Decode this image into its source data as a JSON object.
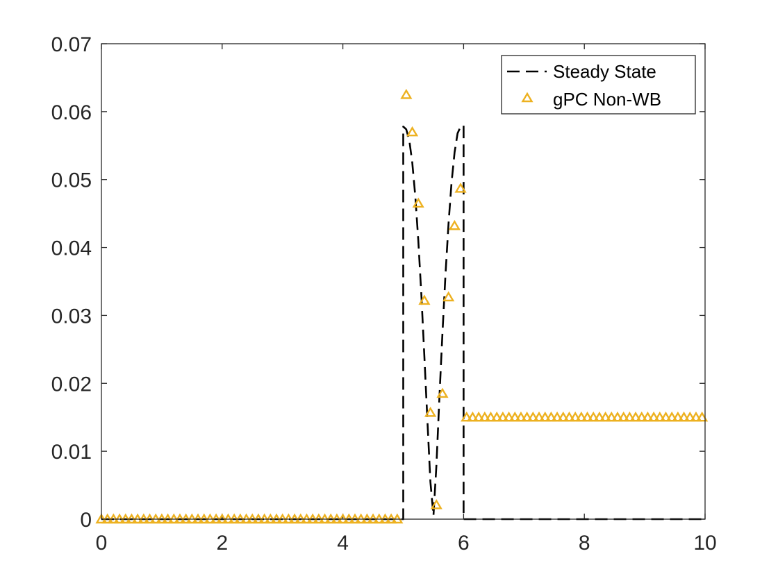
{
  "chart_data": {
    "type": "line",
    "title": "",
    "xlabel": "",
    "ylabel": "",
    "xlim": [
      0,
      10
    ],
    "ylim": [
      0,
      0.07
    ],
    "xticks": [
      0,
      2,
      4,
      6,
      8,
      10
    ],
    "xtick_labels": [
      "0",
      "2",
      "4",
      "6",
      "8",
      "10"
    ],
    "yticks": [
      0,
      0.01,
      0.02,
      0.03,
      0.04,
      0.05,
      0.06,
      0.07
    ],
    "ytick_labels": [
      "0",
      "0.01",
      "0.02",
      "0.03",
      "0.04",
      "0.05",
      "0.06",
      "0.07"
    ],
    "grid": false,
    "box": true,
    "legend_placement": "top-right",
    "series": [
      {
        "name": "Steady State",
        "style": "dashed-line",
        "color": "#000000",
        "x": [
          0,
          5,
          5,
          5.05,
          5.1,
          5.15,
          5.2,
          5.25,
          5.3,
          5.35,
          5.4,
          5.45,
          5.5,
          5.55,
          5.6,
          5.65,
          5.7,
          5.75,
          5.8,
          5.85,
          5.9,
          5.95,
          6,
          6,
          10
        ],
        "y": [
          0,
          0,
          0.0578,
          0.0574,
          0.0558,
          0.0525,
          0.0475,
          0.041,
          0.033,
          0.024,
          0.0145,
          0.0055,
          0.0005,
          0.008,
          0.018,
          0.0275,
          0.036,
          0.0435,
          0.0495,
          0.054,
          0.0568,
          0.0578,
          0.058,
          0,
          0
        ]
      },
      {
        "name": "gPC Non-WB",
        "style": "triangle-markers",
        "color": "#EDB120",
        "x": [
          0,
          0.1,
          0.2,
          0.3,
          0.4,
          0.5,
          0.6,
          0.7,
          0.8,
          0.9,
          1.0,
          1.1,
          1.2,
          1.3,
          1.4,
          1.5,
          1.6,
          1.7,
          1.8,
          1.9,
          2.0,
          2.1,
          2.2,
          2.3,
          2.4,
          2.5,
          2.6,
          2.7,
          2.8,
          2.9,
          3.0,
          3.1,
          3.2,
          3.3,
          3.4,
          3.5,
          3.6,
          3.7,
          3.8,
          3.9,
          4.0,
          4.1,
          4.2,
          4.3,
          4.4,
          4.5,
          4.6,
          4.7,
          4.8,
          4.9,
          5.05,
          5.15,
          5.25,
          5.35,
          5.45,
          5.55,
          5.65,
          5.75,
          5.85,
          5.95,
          6.05,
          6.15,
          6.25,
          6.35,
          6.45,
          6.55,
          6.65,
          6.75,
          6.85,
          6.95,
          7.05,
          7.15,
          7.25,
          7.35,
          7.45,
          7.55,
          7.65,
          7.75,
          7.85,
          7.95,
          8.05,
          8.15,
          8.25,
          8.35,
          8.45,
          8.55,
          8.65,
          8.75,
          8.85,
          8.95,
          9.05,
          9.15,
          9.25,
          9.35,
          9.45,
          9.55,
          9.65,
          9.75,
          9.85,
          9.95
        ],
        "y": [
          0,
          0,
          0,
          0,
          0,
          0,
          0,
          0,
          0,
          0,
          0,
          0,
          0,
          0,
          0,
          0,
          0,
          0,
          0,
          0,
          0,
          0,
          0,
          0,
          0,
          0,
          0,
          0,
          0,
          0,
          0,
          0,
          0,
          0,
          0,
          0,
          0,
          0,
          0,
          0,
          0,
          0,
          0,
          0,
          0,
          0,
          0,
          0,
          0,
          0,
          0.0625,
          0.057,
          0.0465,
          0.0322,
          0.0157,
          0.0021,
          0.0185,
          0.0327,
          0.0432,
          0.0487,
          0.015,
          0.015,
          0.015,
          0.015,
          0.015,
          0.015,
          0.015,
          0.015,
          0.015,
          0.015,
          0.015,
          0.015,
          0.015,
          0.015,
          0.015,
          0.015,
          0.015,
          0.015,
          0.015,
          0.015,
          0.015,
          0.015,
          0.015,
          0.015,
          0.015,
          0.015,
          0.015,
          0.015,
          0.015,
          0.015,
          0.015,
          0.015,
          0.015,
          0.015,
          0.015,
          0.015,
          0.015,
          0.015,
          0.015,
          0.015
        ]
      }
    ]
  }
}
